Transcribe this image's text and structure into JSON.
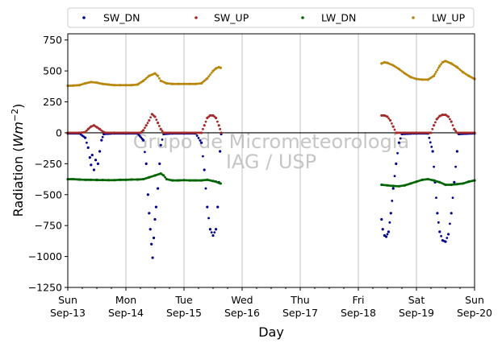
{
  "chart_data": {
    "type": "scatter",
    "title": "",
    "xlabel": "Day",
    "ylabel_main": "Radiation (",
    "ylabel_unit": "Wm",
    "ylabel_exp": "−2",
    "ylabel_close": ")",
    "ylim": [
      -1250,
      800
    ],
    "xlim": [
      0,
      7
    ],
    "grid": "vertical",
    "legend_position": "top",
    "watermark": [
      "Grupo de Micrometeorologia",
      "IAG / USP"
    ],
    "yticks": [
      -1250,
      -1000,
      -750,
      -500,
      -250,
      0,
      250,
      500,
      750
    ],
    "ytick_labels": [
      "−1250",
      "−1000",
      "−750",
      "−500",
      "−250",
      "0",
      "250",
      "500",
      "750"
    ],
    "xticks": [
      {
        "x": 0,
        "day": "Sun",
        "date": "Sep-13"
      },
      {
        "x": 1,
        "day": "Mon",
        "date": "Sep-14"
      },
      {
        "x": 2,
        "day": "Tue",
        "date": "Sep-15"
      },
      {
        "x": 3,
        "day": "Wed",
        "date": "Sep-16"
      },
      {
        "x": 4,
        "day": "Thu",
        "date": "Sep-17"
      },
      {
        "x": 5,
        "day": "Fri",
        "date": "Sep-18"
      },
      {
        "x": 6,
        "day": "Sat",
        "date": "Sep-19"
      },
      {
        "x": 7,
        "day": "Sun",
        "date": "Sep-20"
      }
    ],
    "series": [
      {
        "name": "SW_DN",
        "color": "#00008b",
        "points": [
          [
            0.0,
            -5
          ],
          [
            0.2,
            -5
          ],
          [
            0.3,
            -40
          ],
          [
            0.35,
            -120
          ],
          [
            0.38,
            -200
          ],
          [
            0.4,
            -260
          ],
          [
            0.42,
            -180
          ],
          [
            0.45,
            -300
          ],
          [
            0.48,
            -220
          ],
          [
            0.5,
            -380
          ],
          [
            0.52,
            -250
          ],
          [
            0.55,
            -150
          ],
          [
            0.58,
            -60
          ],
          [
            0.62,
            -10
          ],
          [
            0.8,
            -5
          ],
          [
            1.0,
            -5
          ],
          [
            1.2,
            -5
          ],
          [
            1.3,
            -60
          ],
          [
            1.35,
            -250
          ],
          [
            1.38,
            -500
          ],
          [
            1.4,
            -650
          ],
          [
            1.42,
            -780
          ],
          [
            1.44,
            -900
          ],
          [
            1.46,
            -1010
          ],
          [
            1.48,
            -850
          ],
          [
            1.5,
            -700
          ],
          [
            1.52,
            -600
          ],
          [
            1.55,
            -450
          ],
          [
            1.58,
            -250
          ],
          [
            1.6,
            -100
          ],
          [
            1.65,
            -10
          ],
          [
            1.8,
            -5
          ],
          [
            2.0,
            -5
          ],
          [
            2.2,
            -5
          ],
          [
            2.3,
            -80
          ],
          [
            2.35,
            -300
          ],
          [
            2.4,
            -600
          ],
          [
            2.45,
            -780
          ],
          [
            2.5,
            -830
          ],
          [
            2.55,
            -780
          ],
          [
            2.58,
            -600
          ],
          [
            2.6,
            -400
          ],
          [
            2.62,
            -150
          ],
          [
            2.64,
            -10
          ],
          [
            5.4,
            -700
          ],
          [
            5.42,
            -780
          ],
          [
            5.45,
            -830
          ],
          [
            5.48,
            -840
          ],
          [
            5.52,
            -800
          ],
          [
            5.56,
            -650
          ],
          [
            5.6,
            -450
          ],
          [
            5.65,
            -250
          ],
          [
            5.7,
            -80
          ],
          [
            5.75,
            -10
          ],
          [
            6.0,
            -5
          ],
          [
            6.2,
            -5
          ],
          [
            6.28,
            -150
          ],
          [
            6.32,
            -400
          ],
          [
            6.36,
            -650
          ],
          [
            6.4,
            -800
          ],
          [
            6.45,
            -870
          ],
          [
            6.5,
            -880
          ],
          [
            6.55,
            -820
          ],
          [
            6.6,
            -650
          ],
          [
            6.65,
            -400
          ],
          [
            6.7,
            -150
          ],
          [
            6.73,
            -10
          ],
          [
            7.0,
            -5
          ]
        ]
      },
      {
        "name": "SW_UP",
        "color": "#a52a2a",
        "points": [
          [
            0.0,
            0
          ],
          [
            0.2,
            0
          ],
          [
            0.3,
            5
          ],
          [
            0.35,
            30
          ],
          [
            0.4,
            50
          ],
          [
            0.45,
            60
          ],
          [
            0.5,
            45
          ],
          [
            0.55,
            30
          ],
          [
            0.6,
            10
          ],
          [
            0.65,
            0
          ],
          [
            0.8,
            0
          ],
          [
            1.0,
            0
          ],
          [
            1.25,
            0
          ],
          [
            1.3,
            20
          ],
          [
            1.35,
            60
          ],
          [
            1.4,
            100
          ],
          [
            1.45,
            150
          ],
          [
            1.5,
            130
          ],
          [
            1.55,
            80
          ],
          [
            1.6,
            30
          ],
          [
            1.65,
            0
          ],
          [
            2.0,
            0
          ],
          [
            2.3,
            0
          ],
          [
            2.35,
            60
          ],
          [
            2.4,
            120
          ],
          [
            2.45,
            140
          ],
          [
            2.5,
            140
          ],
          [
            2.55,
            120
          ],
          [
            2.6,
            60
          ],
          [
            2.64,
            0
          ],
          [
            5.4,
            140
          ],
          [
            5.45,
            140
          ],
          [
            5.5,
            130
          ],
          [
            5.55,
            100
          ],
          [
            5.6,
            50
          ],
          [
            5.65,
            0
          ],
          [
            6.0,
            0
          ],
          [
            6.25,
            0
          ],
          [
            6.3,
            60
          ],
          [
            6.35,
            110
          ],
          [
            6.4,
            135
          ],
          [
            6.45,
            145
          ],
          [
            6.5,
            145
          ],
          [
            6.55,
            130
          ],
          [
            6.6,
            90
          ],
          [
            6.65,
            30
          ],
          [
            6.7,
            0
          ],
          [
            7.0,
            0
          ]
        ]
      },
      {
        "name": "LW_DN",
        "color": "#006400",
        "points": [
          [
            0.0,
            -375
          ],
          [
            0.1,
            -375
          ],
          [
            0.2,
            -378
          ],
          [
            0.3,
            -380
          ],
          [
            0.4,
            -380
          ],
          [
            0.5,
            -382
          ],
          [
            0.6,
            -382
          ],
          [
            0.7,
            -383
          ],
          [
            0.8,
            -383
          ],
          [
            0.9,
            -380
          ],
          [
            1.0,
            -380
          ],
          [
            1.1,
            -378
          ],
          [
            1.2,
            -378
          ],
          [
            1.3,
            -375
          ],
          [
            1.4,
            -360
          ],
          [
            1.5,
            -345
          ],
          [
            1.6,
            -330
          ],
          [
            1.65,
            -345
          ],
          [
            1.7,
            -375
          ],
          [
            1.8,
            -385
          ],
          [
            1.9,
            -385
          ],
          [
            2.0,
            -383
          ],
          [
            2.1,
            -385
          ],
          [
            2.2,
            -385
          ],
          [
            2.3,
            -385
          ],
          [
            2.4,
            -380
          ],
          [
            2.5,
            -390
          ],
          [
            2.55,
            -395
          ],
          [
            2.6,
            -405
          ],
          [
            2.63,
            -410
          ],
          [
            5.4,
            -420
          ],
          [
            5.5,
            -425
          ],
          [
            5.6,
            -430
          ],
          [
            5.7,
            -432
          ],
          [
            5.8,
            -425
          ],
          [
            5.9,
            -410
          ],
          [
            6.0,
            -395
          ],
          [
            6.1,
            -380
          ],
          [
            6.2,
            -375
          ],
          [
            6.3,
            -385
          ],
          [
            6.4,
            -400
          ],
          [
            6.5,
            -420
          ],
          [
            6.6,
            -420
          ],
          [
            6.7,
            -415
          ],
          [
            6.8,
            -410
          ],
          [
            6.9,
            -395
          ],
          [
            7.0,
            -385
          ]
        ]
      },
      {
        "name": "LW_UP",
        "color": "#b8860b",
        "points": [
          [
            0.0,
            380
          ],
          [
            0.1,
            382
          ],
          [
            0.2,
            385
          ],
          [
            0.3,
            400
          ],
          [
            0.4,
            410
          ],
          [
            0.5,
            405
          ],
          [
            0.6,
            395
          ],
          [
            0.7,
            390
          ],
          [
            0.8,
            385
          ],
          [
            0.9,
            385
          ],
          [
            1.0,
            385
          ],
          [
            1.1,
            385
          ],
          [
            1.2,
            390
          ],
          [
            1.3,
            420
          ],
          [
            1.4,
            460
          ],
          [
            1.5,
            480
          ],
          [
            1.55,
            460
          ],
          [
            1.6,
            420
          ],
          [
            1.7,
            400
          ],
          [
            1.8,
            395
          ],
          [
            1.9,
            395
          ],
          [
            2.0,
            395
          ],
          [
            2.1,
            395
          ],
          [
            2.2,
            395
          ],
          [
            2.3,
            400
          ],
          [
            2.4,
            440
          ],
          [
            2.5,
            500
          ],
          [
            2.55,
            520
          ],
          [
            2.6,
            530
          ],
          [
            2.63,
            525
          ],
          [
            5.4,
            560
          ],
          [
            5.45,
            570
          ],
          [
            5.5,
            565
          ],
          [
            5.6,
            545
          ],
          [
            5.7,
            515
          ],
          [
            5.8,
            480
          ],
          [
            5.9,
            450
          ],
          [
            6.0,
            435
          ],
          [
            6.1,
            430
          ],
          [
            6.2,
            430
          ],
          [
            6.3,
            460
          ],
          [
            6.4,
            540
          ],
          [
            6.45,
            570
          ],
          [
            6.5,
            580
          ],
          [
            6.6,
            560
          ],
          [
            6.7,
            530
          ],
          [
            6.8,
            490
          ],
          [
            6.9,
            460
          ],
          [
            7.0,
            435
          ]
        ]
      }
    ]
  }
}
